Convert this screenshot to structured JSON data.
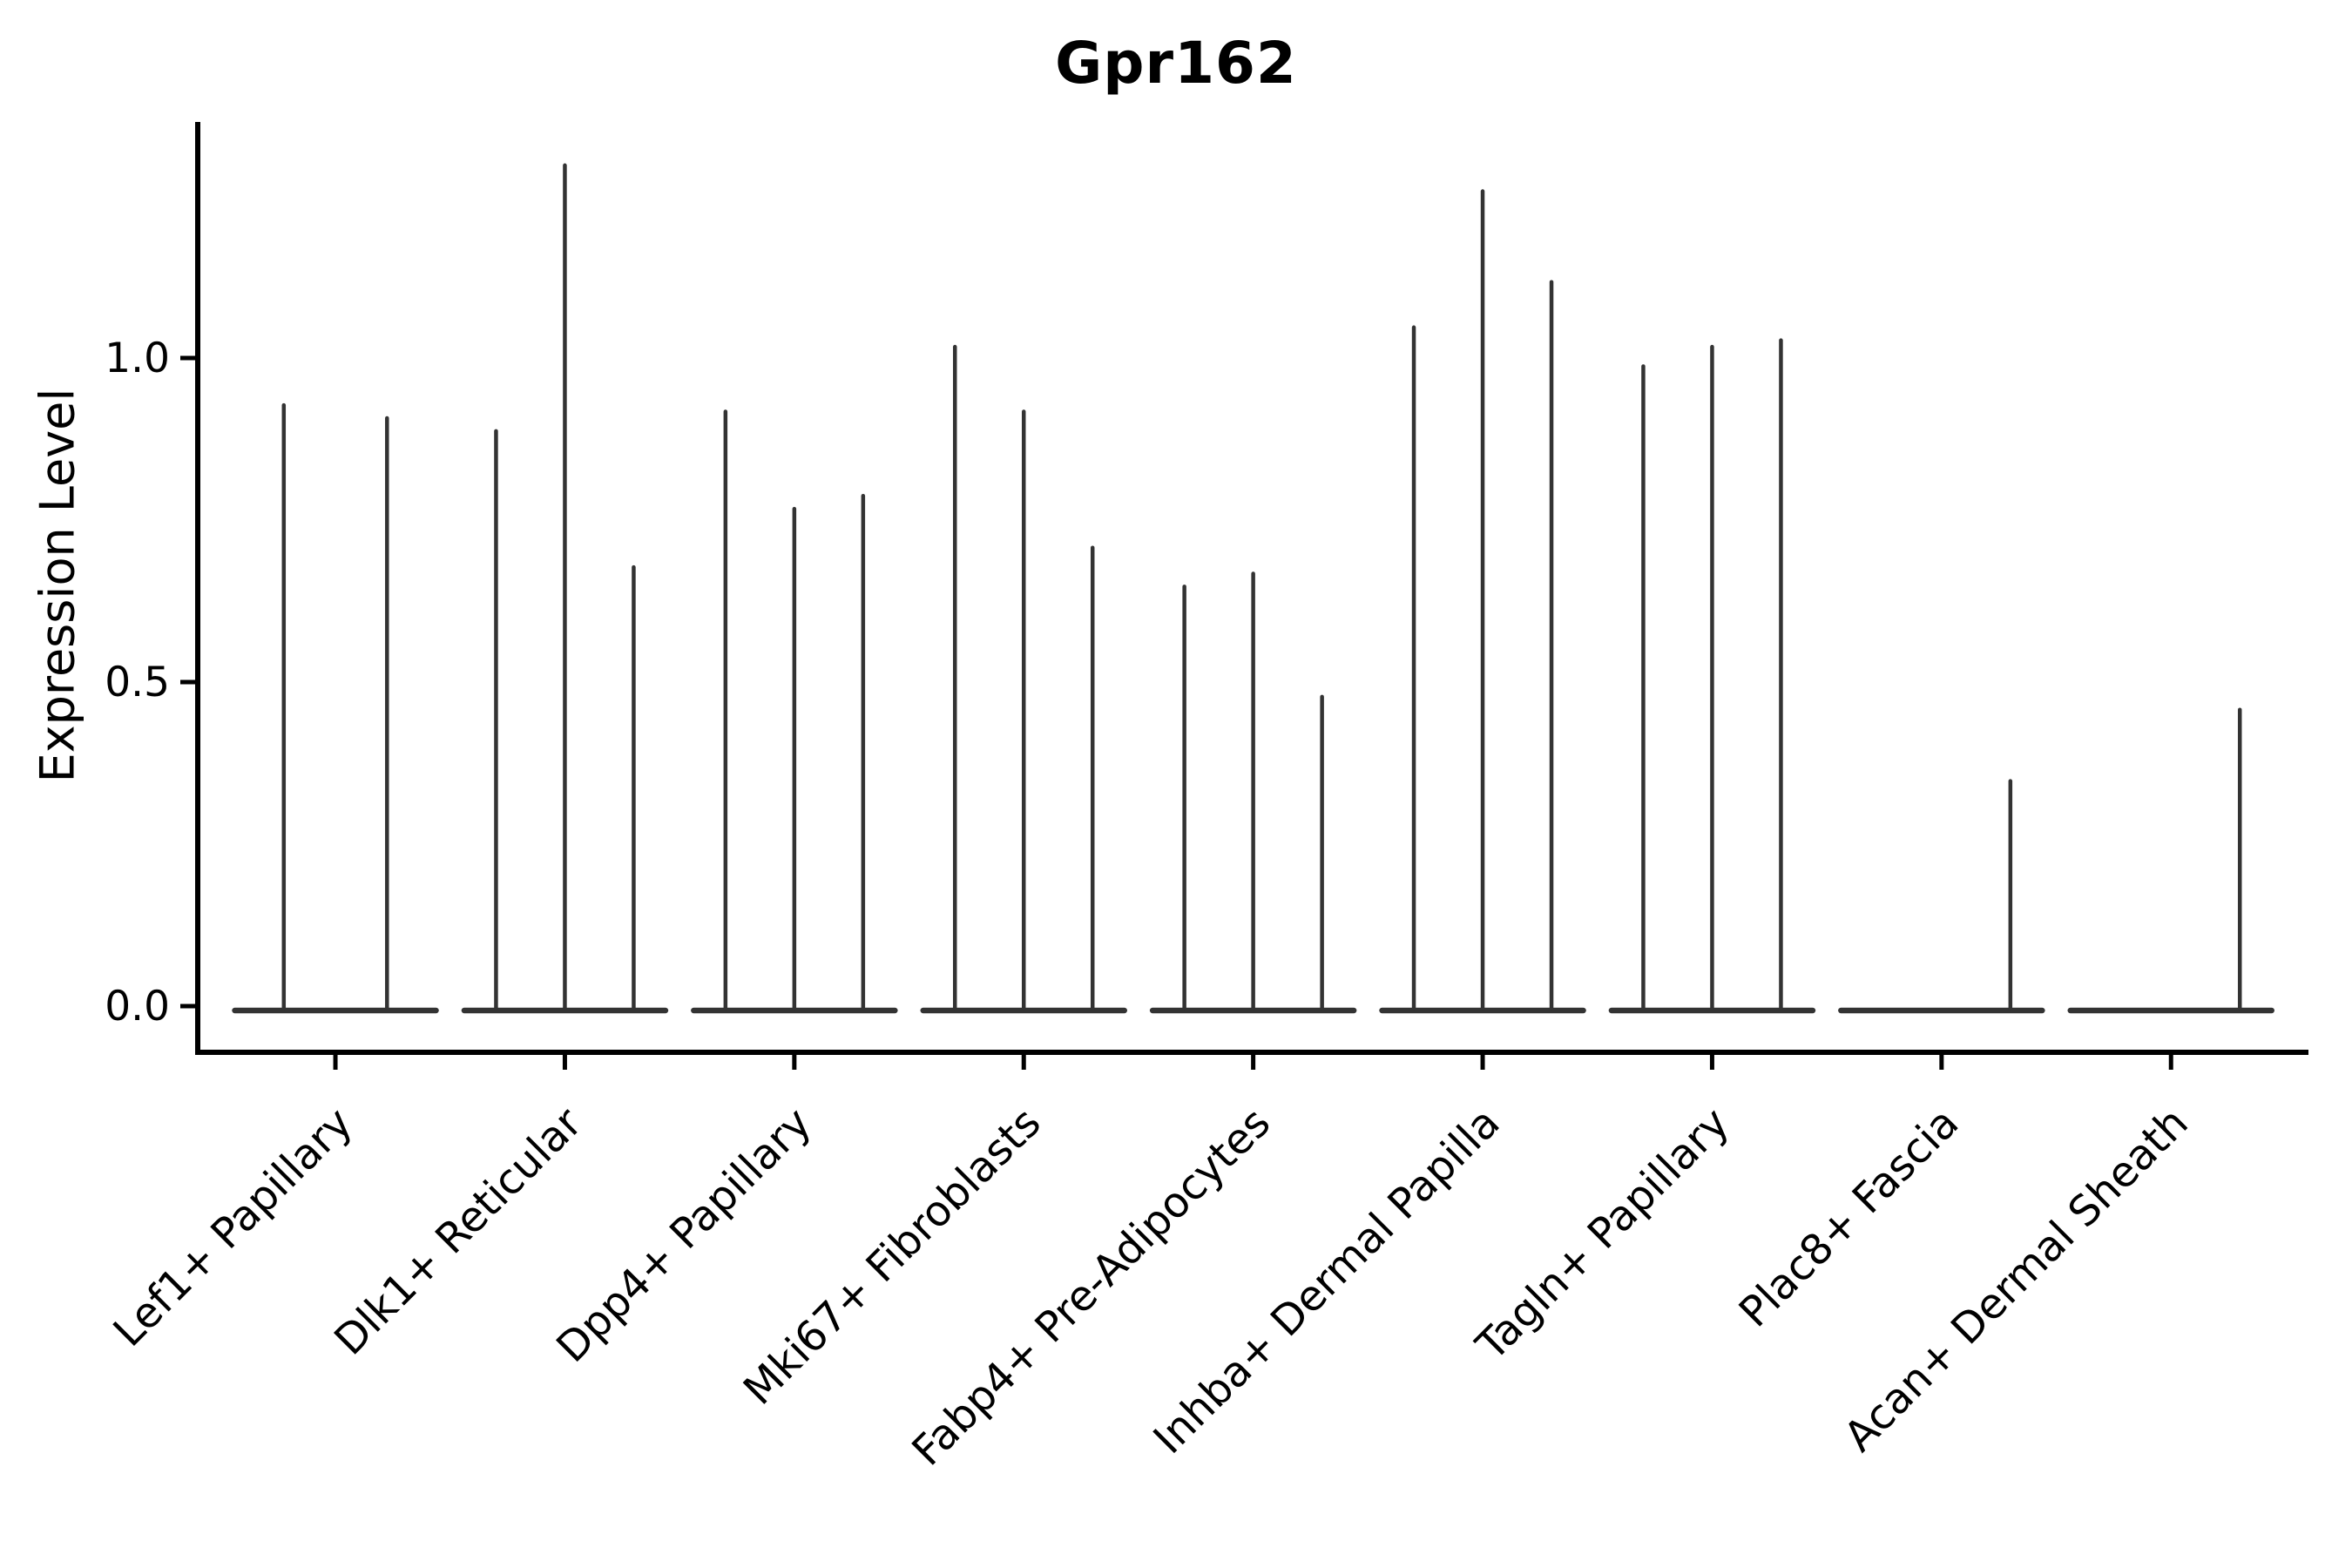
{
  "title": "Gpr162",
  "chart_data": {
    "type": "violin",
    "title": "Gpr162",
    "xlabel": "",
    "ylabel": "Expression Level",
    "y_ticks": [
      {
        "value": 0.0,
        "label": "0.0"
      },
      {
        "value": 0.5,
        "label": "0.5"
      },
      {
        "value": 1.0,
        "label": "1.0"
      }
    ],
    "ylim": [
      -0.07,
      1.36
    ],
    "grid": false,
    "legend": "none",
    "style_note": "Seurat-style expression violins: nearly all cells are zero, so each violin renders as a wide flat base at y=0 with a needle-thin spike rising to the distribution maximum.",
    "categories": [
      "Lef1+ Papillary",
      "Dlk1+ Reticular",
      "Dpp4+ Papillary",
      "Mki67+ Fibroblasts",
      "Fabp4+ Pre-Adipocytes",
      "Inhba+ Dermal Papilla",
      "Tagln+ Papillary",
      "Plac8+ Fascia",
      "Acan+ Dermal Sheath"
    ],
    "groups": [
      {
        "label": "Lef1+ Papillary",
        "violin_max": [
          0.93,
          0.91
        ]
      },
      {
        "label": "Dlk1+ Reticular",
        "violin_max": [
          0.89,
          1.3,
          0.68
        ]
      },
      {
        "label": "Dpp4+ Papillary",
        "violin_max": [
          0.92,
          0.77,
          0.79
        ]
      },
      {
        "label": "Mki67+ Fibroblasts",
        "violin_max": [
          1.02,
          0.92,
          0.71
        ]
      },
      {
        "label": "Fabp4+ Pre-Adipocytes",
        "violin_max": [
          0.65,
          0.67,
          0.48
        ]
      },
      {
        "label": "Inhba+ Dermal Papilla",
        "violin_max": [
          1.05,
          1.26,
          1.12
        ]
      },
      {
        "label": "Tagln+ Papillary",
        "violin_max": [
          0.99,
          1.02,
          1.03
        ]
      },
      {
        "label": "Plac8+ Fascia",
        "violin_max": [
          0.0,
          0.0,
          0.35
        ]
      },
      {
        "label": "Acan+ Dermal Sheath",
        "violin_max": [
          0.0,
          0.0,
          0.46
        ]
      }
    ],
    "colors": {
      "violin": "#333333",
      "axis": "#000000",
      "text": "#000000",
      "background": "#ffffff"
    }
  }
}
